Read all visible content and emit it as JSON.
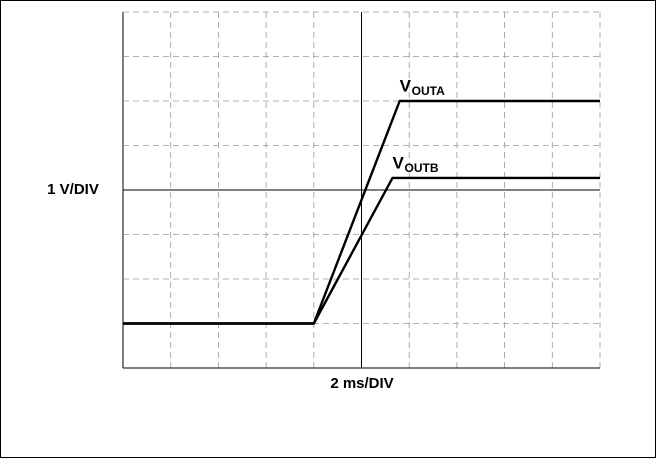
{
  "chart_data": {
    "type": "line",
    "xlabel": "2 ms/DIV",
    "ylabel": "1 V/DIV",
    "xlim": [
      0,
      10
    ],
    "ylim": [
      0,
      8
    ],
    "xticks": [
      0,
      1,
      2,
      3,
      4,
      5,
      6,
      7,
      8,
      9,
      10
    ],
    "yticks": [
      0,
      1,
      2,
      3,
      4,
      5,
      6,
      7,
      8
    ],
    "grid": true,
    "series": [
      {
        "label": "V",
        "label_sub": "OUTA",
        "color": "#000000",
        "x": [
          0,
          4,
          5.8,
          10
        ],
        "values": [
          1,
          1,
          6,
          6
        ]
      },
      {
        "label": "V",
        "label_sub": "OUTB",
        "color": "#000000",
        "x": [
          0,
          4,
          5.65,
          10
        ],
        "values": [
          1,
          1,
          4.27,
          4.27
        ]
      }
    ]
  }
}
